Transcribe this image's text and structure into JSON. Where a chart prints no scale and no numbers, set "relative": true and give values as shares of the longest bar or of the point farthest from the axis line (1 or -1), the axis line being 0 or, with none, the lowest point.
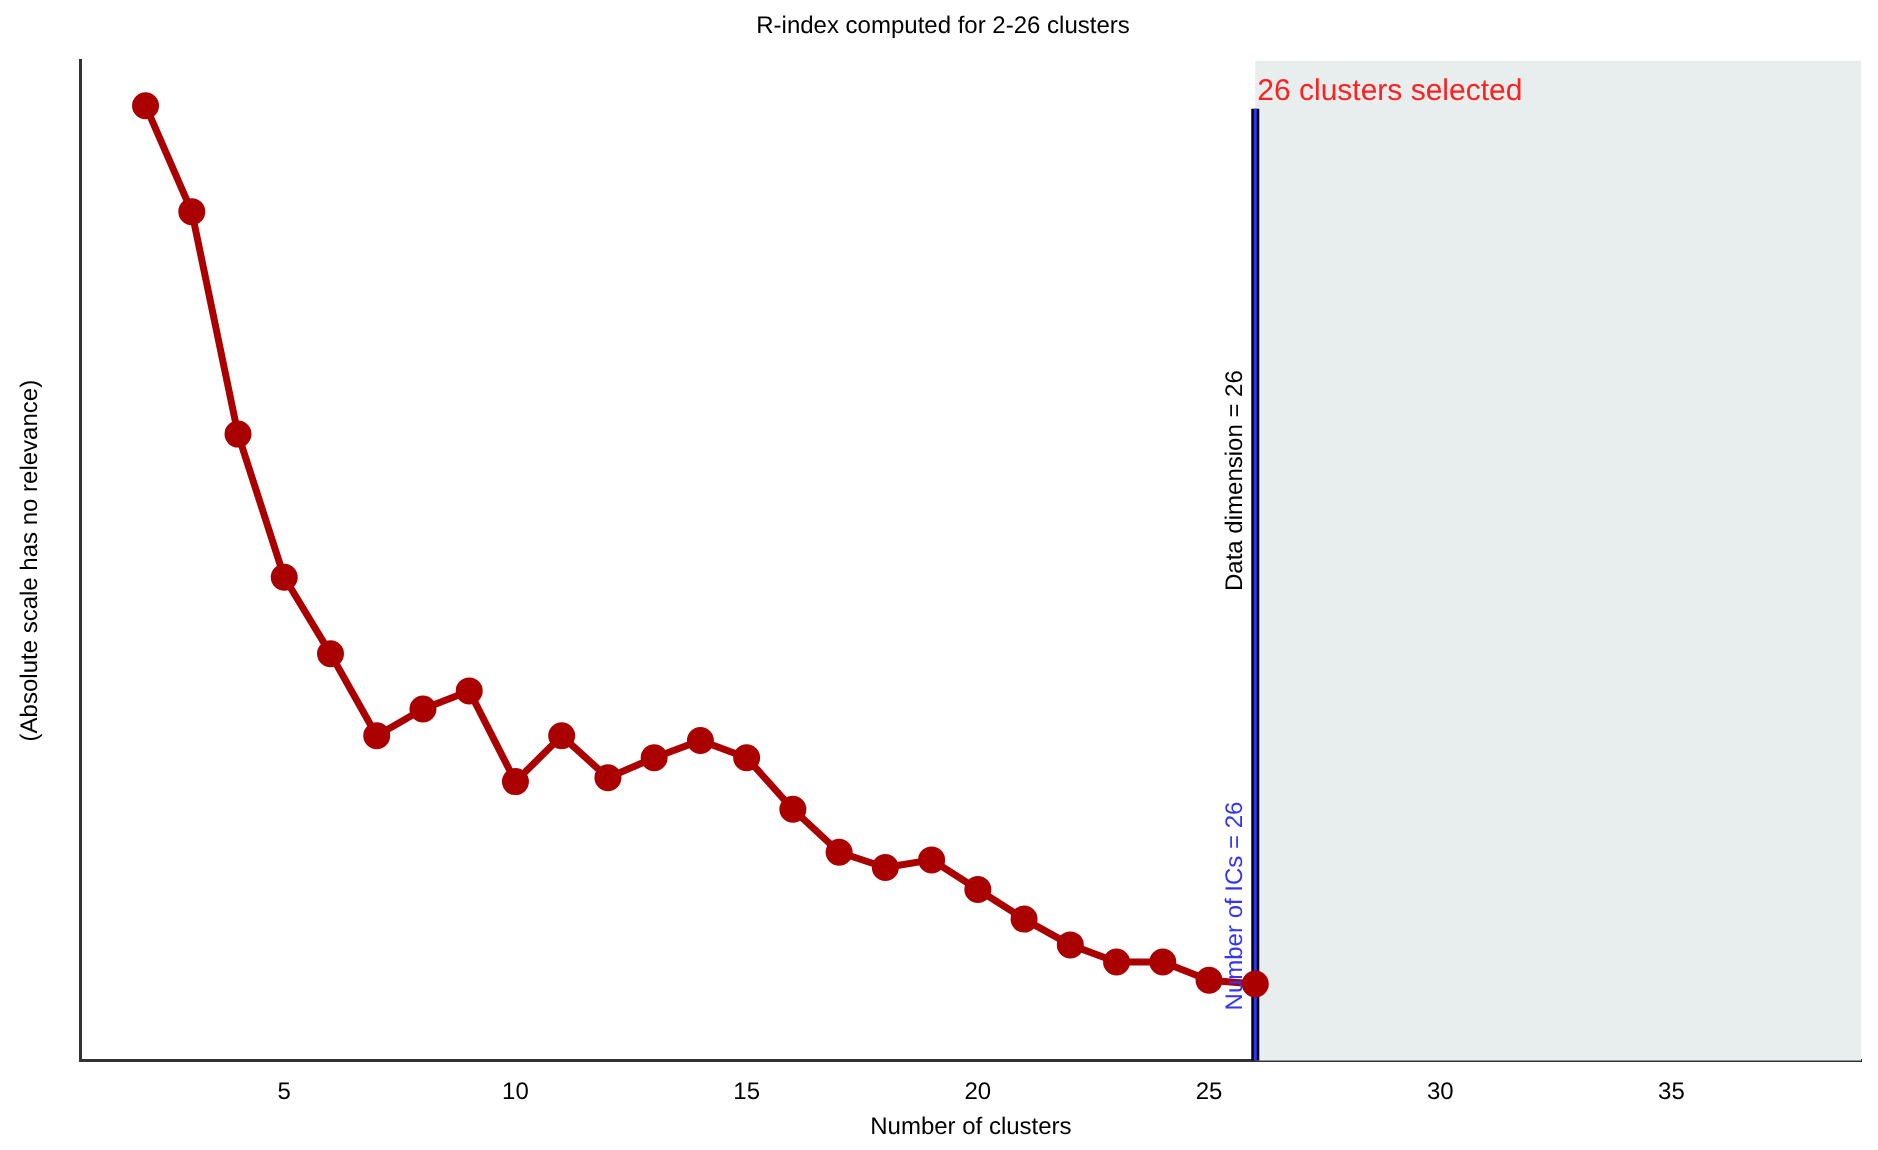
{
  "chart_data": {
    "type": "line",
    "title": "R-index computed for 2-26 clusters",
    "xlabel": "Number of clusters",
    "ylabel": "(Absolute scale has no relevance)",
    "relative": true,
    "x": [
      2,
      3,
      4,
      5,
      6,
      7,
      8,
      9,
      10,
      11,
      12,
      13,
      14,
      15,
      16,
      17,
      18,
      19,
      20,
      21,
      22,
      23,
      24,
      25,
      26
    ],
    "series": [
      {
        "color": "#aa0000",
        "values": [
          1,
          0.889,
          0.656,
          0.506,
          0.426,
          0.34,
          0.368,
          0.387,
          0.292,
          0.34,
          0.296,
          0.317,
          0.335,
          0.317,
          0.263,
          0.218,
          0.202,
          0.21,
          0.179,
          0.148,
          0.121,
          0.103,
          0.103,
          0.084,
          0.08
        ]
      }
    ],
    "xlim": [
      0.6,
      39.1
    ],
    "xticks": [
      5,
      10,
      15,
      20,
      25,
      30,
      35
    ],
    "ref_lines": [
      {
        "axis": "x",
        "value": 26,
        "label": "Data dimension = 26",
        "color": "#000000"
      },
      {
        "axis": "x",
        "value": 26,
        "label": "Number of ICs = 26",
        "color": "#3333ff"
      }
    ],
    "bands": [
      {
        "axis": "x",
        "from": 26,
        "to": 39.1,
        "label": "26 clusters selected",
        "color": "#e8eded"
      }
    ],
    "grid": false,
    "legend": false,
    "marker": "circle",
    "line_style": "solid"
  }
}
